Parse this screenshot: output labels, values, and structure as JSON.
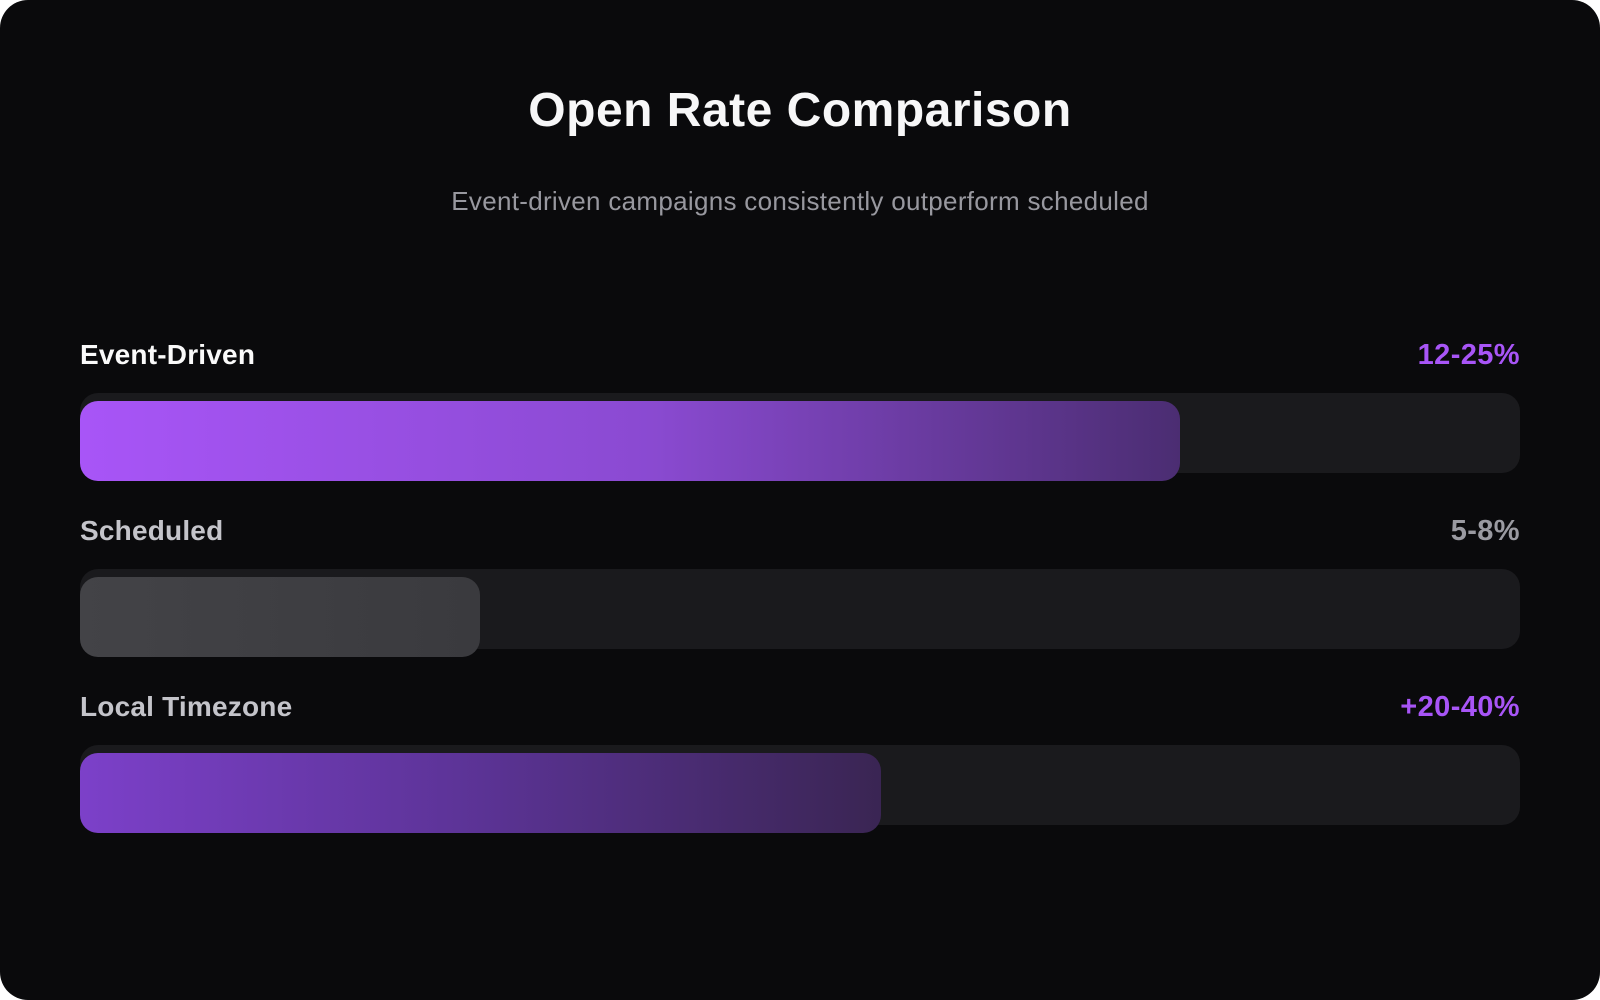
{
  "header": {
    "title": "Open Rate Comparison",
    "subtitle": "Event-driven campaigns consistently outperform scheduled"
  },
  "chart_data": {
    "type": "bar",
    "orientation": "horizontal",
    "title": "Open Rate Comparison",
    "subtitle": "Event-driven campaigns consistently outperform scheduled",
    "categories": [
      "Event-Driven",
      "Scheduled",
      "Local Timezone"
    ],
    "value_labels": [
      "12-25%",
      "5-8%",
      "+20-40%"
    ],
    "value_ranges": [
      [
        12,
        25
      ],
      [
        5,
        8
      ],
      [
        20,
        40
      ]
    ],
    "bar_fill_percent_of_track": [
      76.4,
      27.8,
      55.6
    ],
    "legend": "none",
    "grid": false,
    "axes_labels": "none"
  },
  "rows": [
    {
      "label": "Event-Driven",
      "value": "12-25%",
      "fill_percent": 76.4,
      "tone": "bright-purple"
    },
    {
      "label": "Scheduled",
      "value": "5-8%",
      "fill_percent": 27.8,
      "tone": "gray"
    },
    {
      "label": "Local Timezone",
      "value": "+20-40%",
      "fill_percent": 55.6,
      "tone": "dark-purple"
    }
  ],
  "colors": {
    "card_background": "#0a0a0c",
    "track": "#1a1a1d",
    "accent_purple": "#a855f7",
    "bright_fill_end": "#4b2d72",
    "dark_fill_start": "#7c40c9",
    "dark_fill_end": "#3a2553",
    "gray_fill": "#3e3e43",
    "title_text": "#f7f7f8",
    "subtitle_text": "#98989f",
    "muted_label_text": "#c4c4ca",
    "gray_value_text": "#9a9aa1"
  }
}
